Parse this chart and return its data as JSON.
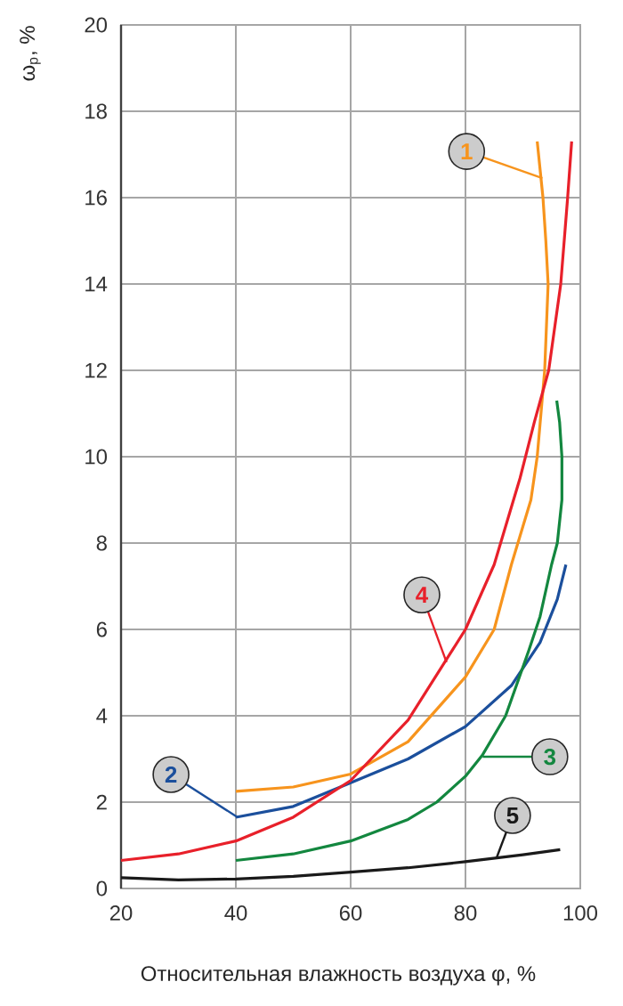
{
  "chart_data": {
    "type": "line",
    "xlabel": "Относительная влажность воздуха φ, %",
    "ylabel": "ω$_{p}$, %",
    "xlim": [
      20,
      100
    ],
    "ylim": [
      0,
      20
    ],
    "xticks": [
      20,
      40,
      60,
      80,
      100
    ],
    "yticks": [
      0,
      2,
      4,
      6,
      8,
      10,
      12,
      14,
      16,
      18,
      20
    ],
    "grid": true,
    "marker": "none",
    "line_style": "solid",
    "series": [
      {
        "name": "1",
        "color": "#f7941d",
        "x": [
          40,
          50,
          60,
          70,
          80,
          85,
          88,
          91.4,
          92.5,
          93.8,
          94.4,
          94,
          93.5,
          92.5
        ],
        "values": [
          2.25,
          2.35,
          2.65,
          3.4,
          4.9,
          6.0,
          7.5,
          9,
          10,
          12,
          14,
          15,
          16,
          17.3
        ]
      },
      {
        "name": "2",
        "color": "#1b4f9c",
        "x": [
          40,
          50,
          60,
          70,
          80,
          88,
          93,
          96,
          97.5
        ],
        "values": [
          1.65,
          1.9,
          2.45,
          3.0,
          3.75,
          4.7,
          5.7,
          6.7,
          7.5
        ]
      },
      {
        "name": "3",
        "color": "#13873f",
        "x": [
          40,
          50,
          60,
          70,
          75,
          80,
          83,
          87,
          91,
          93,
          95,
          96,
          96.8,
          96.8,
          96.4,
          95.9
        ],
        "values": [
          0.65,
          0.8,
          1.1,
          1.6,
          2.0,
          2.6,
          3.1,
          4.0,
          5.5,
          6.3,
          7.5,
          8,
          9,
          10,
          10.8,
          11.3
        ]
      },
      {
        "name": "4",
        "color": "#e8202a",
        "x": [
          20,
          30,
          40,
          50,
          60,
          70,
          80,
          85,
          89.5,
          92,
          94.5,
          96.6,
          97.8,
          98.5
        ],
        "values": [
          0.65,
          0.8,
          1.1,
          1.65,
          2.5,
          3.9,
          6.0,
          7.5,
          9.5,
          10.8,
          12,
          14,
          16,
          17.3
        ]
      },
      {
        "name": "5",
        "color": "#1a1a1a",
        "x": [
          20,
          30,
          40,
          50,
          60,
          70,
          80,
          90,
          96.5
        ],
        "values": [
          0.25,
          0.2,
          0.22,
          0.28,
          0.38,
          0.48,
          0.62,
          0.78,
          0.9
        ]
      }
    ]
  }
}
